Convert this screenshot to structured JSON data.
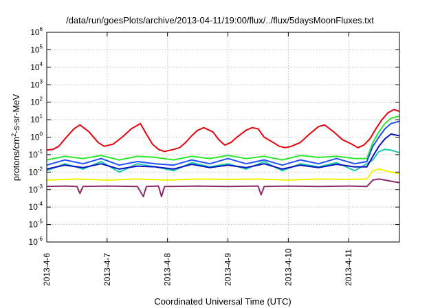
{
  "chart_data": {
    "type": "line",
    "title": "/data/run/goesPlots/archive/2013-04-11/19:00/flux/../flux/5daysMoonFluxes.txt",
    "xlabel": "Coordinated Universal Time (UTC)",
    "ylabel": {
      "prefix": "protons/cm",
      "sup": "2",
      "suffix": "-s-sr-MeV"
    },
    "yscale": "log",
    "ylim": [
      1e-06,
      1000000.0
    ],
    "y_tick_labels": [
      {
        "base": "10",
        "exp": "6",
        "value": 1000000.0
      },
      {
        "base": "10",
        "exp": "5",
        "value": 100000.0
      },
      {
        "base": "10",
        "exp": "4",
        "value": 10000.0
      },
      {
        "base": "10",
        "exp": "3",
        "value": 1000.0
      },
      {
        "base": "10",
        "exp": "2",
        "value": 100.0
      },
      {
        "base": "10",
        "exp": "1",
        "value": 10.0
      },
      {
        "base": "10",
        "exp": "0",
        "value": 1.0
      },
      {
        "base": "10",
        "exp": "-1",
        "value": 0.1
      },
      {
        "base": "10",
        "exp": "-2",
        "value": 0.01
      },
      {
        "base": "10",
        "exp": "-3",
        "value": 0.001
      },
      {
        "base": "10",
        "exp": "-4",
        "value": 0.0001
      },
      {
        "base": "10",
        "exp": "-5",
        "value": 1e-05
      },
      {
        "base": "10",
        "exp": "-6",
        "value": 1e-06
      }
    ],
    "x_tick_labels": [
      "2013-4-6",
      "2013-4-7",
      "2013-4-8",
      "2013-4-9",
      "2013-4-10",
      "2013-4-11"
    ],
    "x_range_days": [
      6.0,
      11.84
    ],
    "grid": true,
    "colors": {
      "red": "#e8000b",
      "green": "#2ee82e",
      "cyan_teal": "#17c9a9",
      "blue": "#1f4fff",
      "navy": "#0a10c0",
      "yellow": "#f2f200",
      "purple": "#8b2a6a"
    },
    "series": [
      {
        "color": "#e8000b",
        "points": [
          [
            6.0,
            0.18
          ],
          [
            6.1,
            0.2
          ],
          [
            6.2,
            0.3
          ],
          [
            6.3,
            0.8
          ],
          [
            6.45,
            3
          ],
          [
            6.55,
            5
          ],
          [
            6.7,
            2
          ],
          [
            6.85,
            0.5
          ],
          [
            6.95,
            0.3
          ],
          [
            7.1,
            0.4
          ],
          [
            7.25,
            1
          ],
          [
            7.4,
            3
          ],
          [
            7.55,
            6
          ],
          [
            7.65,
            1.5
          ],
          [
            7.75,
            0.4
          ],
          [
            7.85,
            0.2
          ],
          [
            7.95,
            0.15
          ],
          [
            8.1,
            0.2
          ],
          [
            8.2,
            0.25
          ],
          [
            8.3,
            0.5
          ],
          [
            8.4,
            1.2
          ],
          [
            8.5,
            2.5
          ],
          [
            8.6,
            3.5
          ],
          [
            8.75,
            2
          ],
          [
            8.85,
            0.7
          ],
          [
            8.95,
            0.35
          ],
          [
            9.05,
            0.5
          ],
          [
            9.15,
            1
          ],
          [
            9.3,
            2.5
          ],
          [
            9.4,
            3.5
          ],
          [
            9.5,
            3
          ],
          [
            9.6,
            1
          ],
          [
            9.75,
            0.5
          ],
          [
            9.85,
            0.3
          ],
          [
            9.95,
            0.25
          ],
          [
            10.05,
            0.3
          ],
          [
            10.2,
            0.5
          ],
          [
            10.35,
            1.5
          ],
          [
            10.5,
            4
          ],
          [
            10.6,
            5
          ],
          [
            10.75,
            2
          ],
          [
            10.9,
            0.7
          ],
          [
            11.05,
            0.4
          ],
          [
            11.15,
            0.25
          ],
          [
            11.25,
            0.35
          ],
          [
            11.35,
            0.8
          ],
          [
            11.45,
            3
          ],
          [
            11.55,
            10
          ],
          [
            11.65,
            25
          ],
          [
            11.75,
            38
          ],
          [
            11.84,
            30
          ]
        ]
      },
      {
        "color": "#2ee82e",
        "points": [
          [
            6.0,
            0.05
          ],
          [
            6.3,
            0.08
          ],
          [
            6.6,
            0.06
          ],
          [
            6.9,
            0.09
          ],
          [
            7.2,
            0.05
          ],
          [
            7.5,
            0.08
          ],
          [
            7.8,
            0.07
          ],
          [
            8.1,
            0.05
          ],
          [
            8.4,
            0.08
          ],
          [
            8.7,
            0.06
          ],
          [
            9.0,
            0.09
          ],
          [
            9.3,
            0.06
          ],
          [
            9.6,
            0.08
          ],
          [
            9.9,
            0.05
          ],
          [
            10.2,
            0.09
          ],
          [
            10.5,
            0.07
          ],
          [
            10.8,
            0.08
          ],
          [
            11.1,
            0.06
          ],
          [
            11.3,
            0.06
          ],
          [
            11.4,
            0.5
          ],
          [
            11.5,
            2
          ],
          [
            11.6,
            6
          ],
          [
            11.7,
            12
          ],
          [
            11.84,
            16
          ]
        ]
      },
      {
        "color": "#17c9a9",
        "points": [
          [
            6.0,
            0.012
          ],
          [
            6.3,
            0.03
          ],
          [
            6.6,
            0.015
          ],
          [
            6.9,
            0.04
          ],
          [
            7.2,
            0.01
          ],
          [
            7.5,
            0.03
          ],
          [
            7.8,
            0.02
          ],
          [
            8.1,
            0.012
          ],
          [
            8.4,
            0.035
          ],
          [
            8.7,
            0.02
          ],
          [
            9.0,
            0.03
          ],
          [
            9.3,
            0.015
          ],
          [
            9.6,
            0.04
          ],
          [
            9.9,
            0.012
          ],
          [
            10.2,
            0.03
          ],
          [
            10.5,
            0.02
          ],
          [
            10.8,
            0.035
          ],
          [
            11.1,
            0.012
          ],
          [
            11.3,
            0.03
          ],
          [
            11.4,
            0.05
          ],
          [
            11.5,
            0.15
          ],
          [
            11.6,
            0.2
          ],
          [
            11.7,
            0.18
          ],
          [
            11.84,
            0.13
          ]
        ]
      },
      {
        "color": "#1f4fff",
        "points": [
          [
            6.0,
            0.025
          ],
          [
            6.3,
            0.05
          ],
          [
            6.6,
            0.03
          ],
          [
            6.9,
            0.06
          ],
          [
            7.2,
            0.025
          ],
          [
            7.5,
            0.04
          ],
          [
            7.8,
            0.03
          ],
          [
            8.1,
            0.025
          ],
          [
            8.4,
            0.05
          ],
          [
            8.7,
            0.03
          ],
          [
            9.0,
            0.06
          ],
          [
            9.3,
            0.03
          ],
          [
            9.6,
            0.05
          ],
          [
            9.9,
            0.025
          ],
          [
            10.2,
            0.05
          ],
          [
            10.5,
            0.03
          ],
          [
            10.8,
            0.06
          ],
          [
            11.1,
            0.03
          ],
          [
            11.3,
            0.04
          ],
          [
            11.4,
            0.3
          ],
          [
            11.5,
            1
          ],
          [
            11.6,
            3
          ],
          [
            11.7,
            6
          ],
          [
            11.84,
            8
          ]
        ]
      },
      {
        "color": "#0a10c0",
        "points": [
          [
            6.0,
            0.015
          ],
          [
            6.3,
            0.025
          ],
          [
            6.6,
            0.018
          ],
          [
            6.9,
            0.03
          ],
          [
            7.2,
            0.015
          ],
          [
            7.5,
            0.022
          ],
          [
            7.8,
            0.02
          ],
          [
            8.1,
            0.015
          ],
          [
            8.4,
            0.028
          ],
          [
            8.7,
            0.018
          ],
          [
            9.0,
            0.025
          ],
          [
            9.3,
            0.018
          ],
          [
            9.6,
            0.03
          ],
          [
            9.9,
            0.015
          ],
          [
            10.2,
            0.025
          ],
          [
            10.5,
            0.018
          ],
          [
            10.8,
            0.028
          ],
          [
            11.1,
            0.02
          ],
          [
            11.3,
            0.02
          ],
          [
            11.4,
            0.08
          ],
          [
            11.5,
            0.3
          ],
          [
            11.6,
            0.8
          ],
          [
            11.7,
            1.5
          ],
          [
            11.84,
            1.2
          ]
        ]
      },
      {
        "color": "#f2f200",
        "points": [
          [
            6.0,
            0.0035
          ],
          [
            6.5,
            0.004
          ],
          [
            7.0,
            0.0035
          ],
          [
            7.5,
            0.004
          ],
          [
            8.0,
            0.0035
          ],
          [
            8.5,
            0.004
          ],
          [
            9.0,
            0.0038
          ],
          [
            9.5,
            0.004
          ],
          [
            10.0,
            0.0035
          ],
          [
            10.5,
            0.004
          ],
          [
            11.0,
            0.0038
          ],
          [
            11.3,
            0.004
          ],
          [
            11.4,
            0.012
          ],
          [
            11.5,
            0.015
          ],
          [
            11.6,
            0.012
          ],
          [
            11.7,
            0.01
          ],
          [
            11.84,
            0.008
          ]
        ]
      },
      {
        "color": "#8b2a6a",
        "points": [
          [
            6.0,
            0.0015
          ],
          [
            6.3,
            0.0016
          ],
          [
            6.5,
            0.0015
          ],
          [
            6.55,
            0.0006
          ],
          [
            6.6,
            0.0015
          ],
          [
            7.0,
            0.0016
          ],
          [
            7.5,
            0.0015
          ],
          [
            7.6,
            0.0004
          ],
          [
            7.65,
            0.0015
          ],
          [
            7.85,
            0.0016
          ],
          [
            7.9,
            0.0004
          ],
          [
            7.95,
            0.0015
          ],
          [
            8.5,
            0.0016
          ],
          [
            9.0,
            0.0015
          ],
          [
            9.5,
            0.0016
          ],
          [
            9.55,
            0.0005
          ],
          [
            9.6,
            0.0015
          ],
          [
            10.0,
            0.0016
          ],
          [
            10.5,
            0.0015
          ],
          [
            11.0,
            0.0016
          ],
          [
            11.3,
            0.0015
          ],
          [
            11.4,
            0.0035
          ],
          [
            11.5,
            0.004
          ],
          [
            11.6,
            0.0035
          ],
          [
            11.7,
            0.003
          ],
          [
            11.84,
            0.0025
          ]
        ]
      }
    ]
  }
}
